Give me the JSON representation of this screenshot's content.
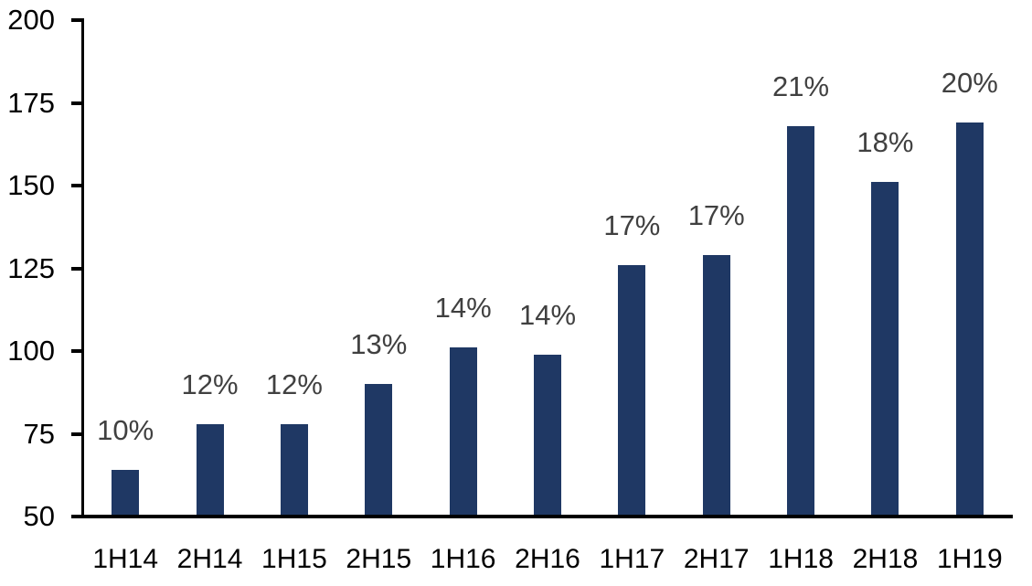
{
  "chart_data": {
    "type": "bar",
    "categories": [
      "1H14",
      "2H14",
      "1H15",
      "2H15",
      "1H16",
      "2H16",
      "1H17",
      "2H17",
      "1H18",
      "2H18",
      "1H19"
    ],
    "values": [
      64,
      78,
      78,
      90,
      101,
      99,
      126,
      129,
      168,
      151,
      169
    ],
    "bar_labels": [
      "10%",
      "12%",
      "12%",
      "13%",
      "14%",
      "14%",
      "17%",
      "17%",
      "21%",
      "18%",
      "20%"
    ],
    "title": "",
    "xlabel": "",
    "ylabel": "",
    "ylim": [
      50,
      200
    ],
    "yticks": [
      50,
      75,
      100,
      125,
      150,
      175,
      200
    ],
    "grid": false,
    "legend_position": "none",
    "colors": {
      "bar": "#1f3864",
      "bar_label": "#404040",
      "axis_text": "#000000",
      "axis_line": "#000000",
      "background": "#ffffff"
    }
  }
}
